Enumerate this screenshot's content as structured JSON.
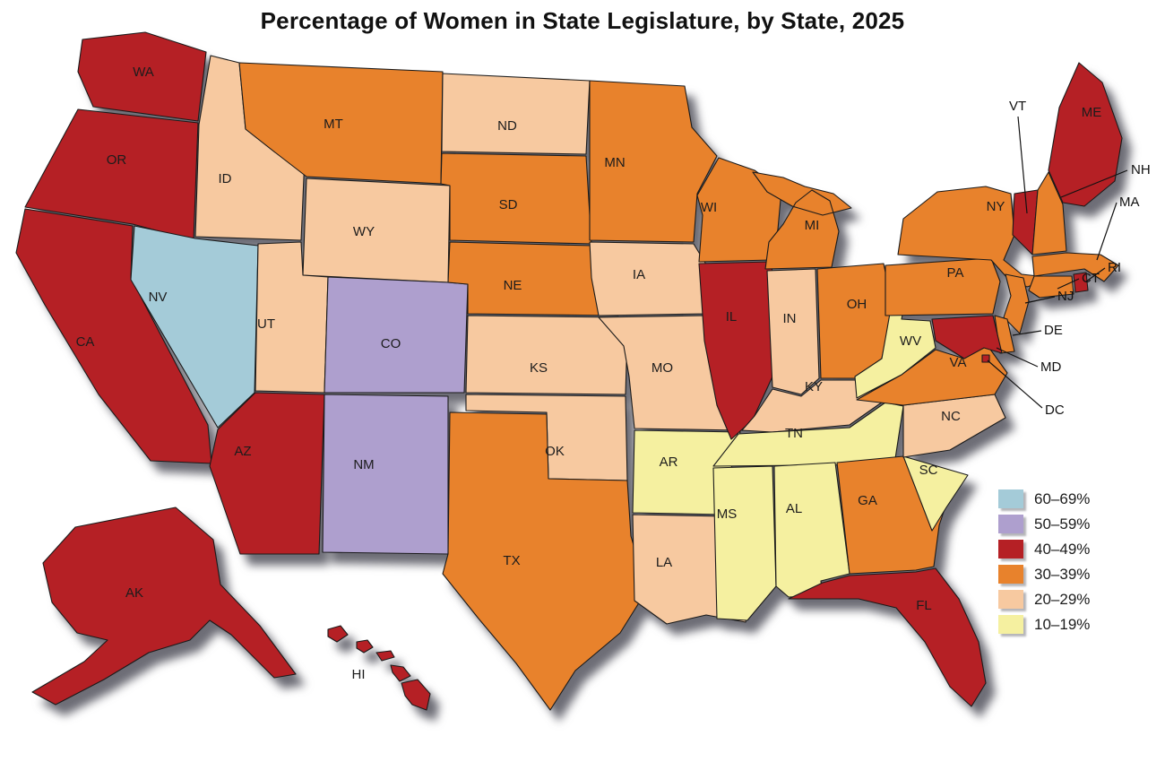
{
  "title": "Percentage of Women in State Legislature, by State, 2025",
  "legend": {
    "items": [
      {
        "key": "60-69",
        "label": "60–69%",
        "color": "#a4cbd8"
      },
      {
        "key": "50-59",
        "label": "50–59%",
        "color": "#ae9fce"
      },
      {
        "key": "40-49",
        "label": "40–49%",
        "color": "#b52025"
      },
      {
        "key": "30-39",
        "label": "30–39%",
        "color": "#e8822c"
      },
      {
        "key": "20-29",
        "label": "20–29%",
        "color": "#f7c9a0"
      },
      {
        "key": "10-19",
        "label": "10–19%",
        "color": "#f5f0a0"
      }
    ]
  },
  "map": {
    "type": "choropleth",
    "states": [
      {
        "abbr": "WA",
        "category": "40-49"
      },
      {
        "abbr": "OR",
        "category": "40-49"
      },
      {
        "abbr": "CA",
        "category": "40-49"
      },
      {
        "abbr": "NV",
        "category": "60-69"
      },
      {
        "abbr": "ID",
        "category": "20-29"
      },
      {
        "abbr": "MT",
        "category": "30-39"
      },
      {
        "abbr": "WY",
        "category": "20-29"
      },
      {
        "abbr": "UT",
        "category": "20-29"
      },
      {
        "abbr": "CO",
        "category": "50-59"
      },
      {
        "abbr": "AZ",
        "category": "40-49"
      },
      {
        "abbr": "NM",
        "category": "50-59"
      },
      {
        "abbr": "ND",
        "category": "20-29"
      },
      {
        "abbr": "SD",
        "category": "30-39"
      },
      {
        "abbr": "NE",
        "category": "30-39"
      },
      {
        "abbr": "KS",
        "category": "20-29"
      },
      {
        "abbr": "OK",
        "category": "20-29"
      },
      {
        "abbr": "TX",
        "category": "30-39"
      },
      {
        "abbr": "MN",
        "category": "30-39"
      },
      {
        "abbr": "IA",
        "category": "20-29"
      },
      {
        "abbr": "MO",
        "category": "20-29"
      },
      {
        "abbr": "AR",
        "category": "10-19"
      },
      {
        "abbr": "LA",
        "category": "20-29"
      },
      {
        "abbr": "WI",
        "category": "30-39"
      },
      {
        "abbr": "IL",
        "category": "40-49"
      },
      {
        "abbr": "MI",
        "category": "30-39"
      },
      {
        "abbr": "IN",
        "category": "20-29"
      },
      {
        "abbr": "OH",
        "category": "30-39"
      },
      {
        "abbr": "KY",
        "category": "20-29"
      },
      {
        "abbr": "TN",
        "category": "10-19"
      },
      {
        "abbr": "MS",
        "category": "10-19"
      },
      {
        "abbr": "AL",
        "category": "10-19"
      },
      {
        "abbr": "GA",
        "category": "30-39"
      },
      {
        "abbr": "FL",
        "category": "40-49"
      },
      {
        "abbr": "SC",
        "category": "10-19"
      },
      {
        "abbr": "NC",
        "category": "20-29"
      },
      {
        "abbr": "VA",
        "category": "30-39"
      },
      {
        "abbr": "WV",
        "category": "10-19"
      },
      {
        "abbr": "PA",
        "category": "30-39"
      },
      {
        "abbr": "NY",
        "category": "30-39"
      },
      {
        "abbr": "ME",
        "category": "40-49"
      },
      {
        "abbr": "VT",
        "category": "40-49"
      },
      {
        "abbr": "NH",
        "category": "30-39"
      },
      {
        "abbr": "MA",
        "category": "30-39"
      },
      {
        "abbr": "RI",
        "category": "40-49"
      },
      {
        "abbr": "CT",
        "category": "30-39"
      },
      {
        "abbr": "NJ",
        "category": "30-39"
      },
      {
        "abbr": "DE",
        "category": "30-39"
      },
      {
        "abbr": "MD",
        "category": "40-49"
      },
      {
        "abbr": "DC",
        "category": "40-49"
      },
      {
        "abbr": "AK",
        "category": "40-49"
      },
      {
        "abbr": "HI",
        "category": "40-49"
      }
    ]
  }
}
